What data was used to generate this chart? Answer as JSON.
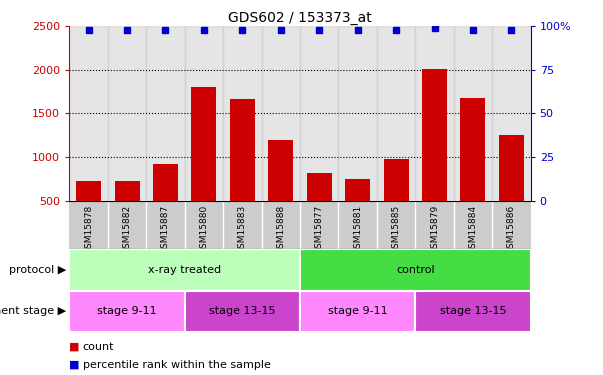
{
  "title": "GDS602 / 153373_at",
  "samples": [
    "GSM15878",
    "GSM15882",
    "GSM15887",
    "GSM15880",
    "GSM15883",
    "GSM15888",
    "GSM15877",
    "GSM15881",
    "GSM15885",
    "GSM15879",
    "GSM15884",
    "GSM15886"
  ],
  "counts": [
    720,
    720,
    920,
    1800,
    1660,
    1190,
    820,
    745,
    980,
    2010,
    1680,
    1250
  ],
  "percentile": [
    98,
    98,
    98,
    98,
    98,
    98,
    98,
    98,
    98,
    99,
    98,
    98
  ],
  "ylim_left": [
    500,
    2500
  ],
  "ylim_right": [
    0,
    100
  ],
  "yticks_left": [
    500,
    1000,
    1500,
    2000,
    2500
  ],
  "yticks_right": [
    0,
    25,
    50,
    75,
    100
  ],
  "bar_color": "#cc0000",
  "dot_color": "#0000cc",
  "protocol_groups": [
    {
      "label": "x-ray treated",
      "start": 0,
      "end": 6,
      "color": "#bbffbb"
    },
    {
      "label": "control",
      "start": 6,
      "end": 12,
      "color": "#44dd44"
    }
  ],
  "stage_groups": [
    {
      "label": "stage 9-11",
      "start": 0,
      "end": 3,
      "color": "#ff88ff"
    },
    {
      "label": "stage 13-15",
      "start": 3,
      "end": 6,
      "color": "#cc44cc"
    },
    {
      "label": "stage 9-11",
      "start": 6,
      "end": 9,
      "color": "#ff88ff"
    },
    {
      "label": "stage 13-15",
      "start": 9,
      "end": 12,
      "color": "#cc44cc"
    }
  ],
  "left_axis_color": "#cc0000",
  "right_axis_color": "#0000cc",
  "grid_color": "#000000",
  "protocol_label": "protocol",
  "stage_label": "development stage",
  "legend_count": "count",
  "legend_percentile": "percentile rank within the sample",
  "tick_label_bg": "#cccccc"
}
